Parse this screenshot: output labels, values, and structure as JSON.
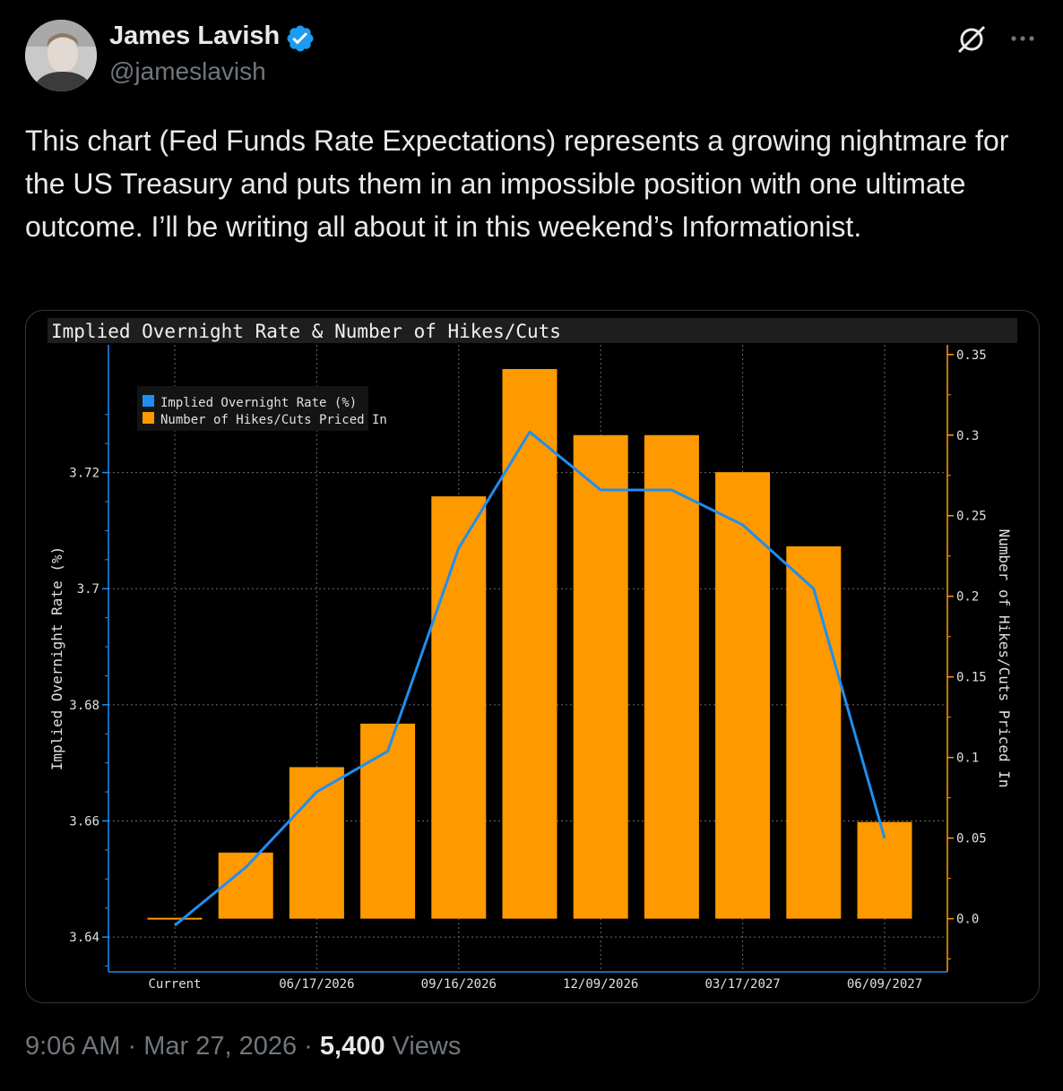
{
  "tweet": {
    "author_name": "James Lavish",
    "handle": "@jameslavish",
    "text": "This chart (Fed Funds Rate Expectations) represents a growing nightmare for the US Treasury and puts them in an impossible position with one ultimate outcome. I’ll be writing all about it in this weekend’s Informationist.",
    "time": "9:06 AM",
    "date": "Mar 27, 2026",
    "views_count": "5,400",
    "views_label": "Views",
    "separator": "·"
  },
  "icons": {
    "verified": "verified-badge-icon",
    "grok": "grok-icon",
    "more": "more-options-icon"
  },
  "colors": {
    "line": "#1f8ef1",
    "bars": "#ff9900",
    "verified": "#1d9bf0"
  },
  "chart_data": {
    "type": "bar",
    "title": "Implied Overnight Rate & Number of Hikes/Cuts",
    "legend": [
      "Implied Overnight Rate (%)",
      "Number of Hikes/Cuts Priced In"
    ],
    "legend_position": "top-left",
    "x_tick_labels": [
      "Current",
      "06/17/2026",
      "09/16/2026",
      "12/09/2026",
      "03/17/2027",
      "06/09/2027"
    ],
    "ylabel_left": "Implied Overnight Rate (%)",
    "ylabel_right": "Number of Hikes/Cuts Priced In",
    "left_ticks": [
      "3.64",
      "3.66",
      "3.68",
      "3.7",
      "3.72"
    ],
    "right_ticks": [
      "0.0",
      "0.05",
      "0.1",
      "0.15",
      "0.2",
      "0.25",
      "0.3",
      "0.35"
    ],
    "ylim_left": [
      3.634,
      3.742
    ],
    "ylim_right": [
      -0.033,
      0.356
    ],
    "grid": true,
    "series": [
      {
        "name": "Number of Hikes/Cuts Priced In",
        "type": "bar",
        "axis": "right",
        "values": [
          0.0,
          0.041,
          0.094,
          0.121,
          0.262,
          0.341,
          0.3,
          0.3,
          0.277,
          0.231,
          0.06
        ]
      },
      {
        "name": "Implied Overnight Rate (%)",
        "type": "line",
        "axis": "left",
        "values": [
          3.642,
          3.652,
          3.665,
          3.672,
          3.707,
          3.727,
          3.717,
          3.717,
          3.711,
          3.7,
          3.657
        ]
      }
    ]
  }
}
